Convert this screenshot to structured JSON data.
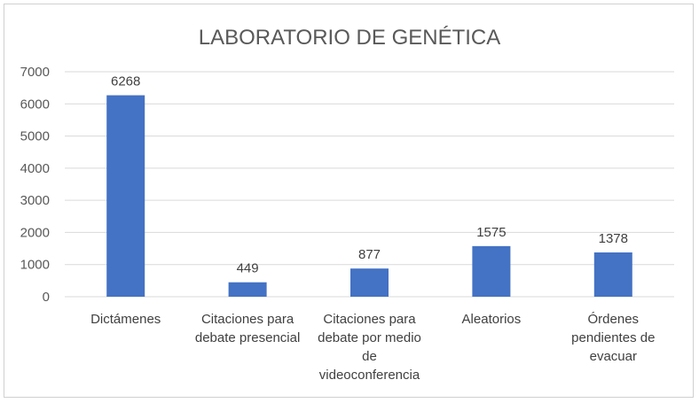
{
  "chart_data": {
    "type": "bar",
    "title": "LABORATORIO DE GENÉTICA",
    "xlabel": "",
    "ylabel": "",
    "categories": [
      [
        "Dictámenes"
      ],
      [
        "Citaciones para",
        "debate presencial"
      ],
      [
        "Citaciones para",
        "debate por medio",
        "de",
        "videoconferencia"
      ],
      [
        "Aleatorios"
      ],
      [
        "Órdenes",
        "pendientes de",
        "evacuar"
      ]
    ],
    "values": [
      6268,
      449,
      877,
      1575,
      1378
    ],
    "ylim": [
      0,
      7000
    ],
    "yticks": [
      "0",
      "1000",
      "2000",
      "3000",
      "4000",
      "5000",
      "6000",
      "7000"
    ],
    "grid": true,
    "legend": "none",
    "bar_color": "#4472c4"
  }
}
